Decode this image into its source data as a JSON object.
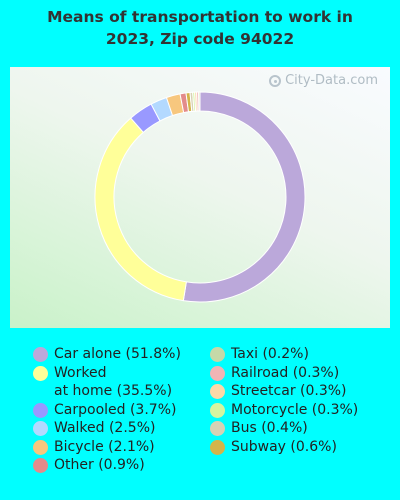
{
  "title_line1": "Means of transportation to work in",
  "title_line2": "2023, Zip code 94022",
  "watermark": "City-Data.com",
  "chart_data": {
    "type": "pie",
    "donut": true,
    "title": "Means of transportation to work in 2023, Zip code 94022",
    "slices": [
      {
        "label": "Car alone (51.8%)",
        "name": "Car alone",
        "value": 51.8,
        "color": "#bba8da"
      },
      {
        "label": "Worked\nat home (35.5%)",
        "name": "Worked at home",
        "value": 35.5,
        "color": "#ffff99"
      },
      {
        "label": "Carpooled (3.7%)",
        "name": "Carpooled",
        "value": 3.7,
        "color": "#9999ff"
      },
      {
        "label": "Walked (2.5%)",
        "name": "Walked",
        "value": 2.5,
        "color": "#b3d9ff"
      },
      {
        "label": "Bicycle (2.1%)",
        "name": "Bicycle",
        "value": 2.1,
        "color": "#f7c77e"
      },
      {
        "label": "Other (0.9%)",
        "name": "Other",
        "value": 0.9,
        "color": "#e38b8b"
      },
      {
        "label": "Taxi (0.2%)",
        "name": "Taxi",
        "value": 0.2,
        "color": "#c5d9a8"
      },
      {
        "label": "Railroad (0.3%)",
        "name": "Railroad",
        "value": 0.3,
        "color": "#f0b5b5"
      },
      {
        "label": "Streetcar (0.3%)",
        "name": "Streetcar",
        "value": 0.3,
        "color": "#fcd9a8"
      },
      {
        "label": "Motorcycle (0.3%)",
        "name": "Motorcycle",
        "value": 0.3,
        "color": "#d4f5a0"
      },
      {
        "label": "Bus (0.4%)",
        "name": "Bus",
        "value": 0.4,
        "color": "#d8d2b5"
      },
      {
        "label": "Subway (0.6%)",
        "name": "Subway",
        "value": 0.6,
        "color": "#d4b44a"
      }
    ],
    "legend_placement": "bottom",
    "legend_columns": [
      [
        0,
        1,
        2,
        3,
        4,
        5
      ],
      [
        6,
        7,
        8,
        9,
        10,
        11
      ]
    ]
  }
}
